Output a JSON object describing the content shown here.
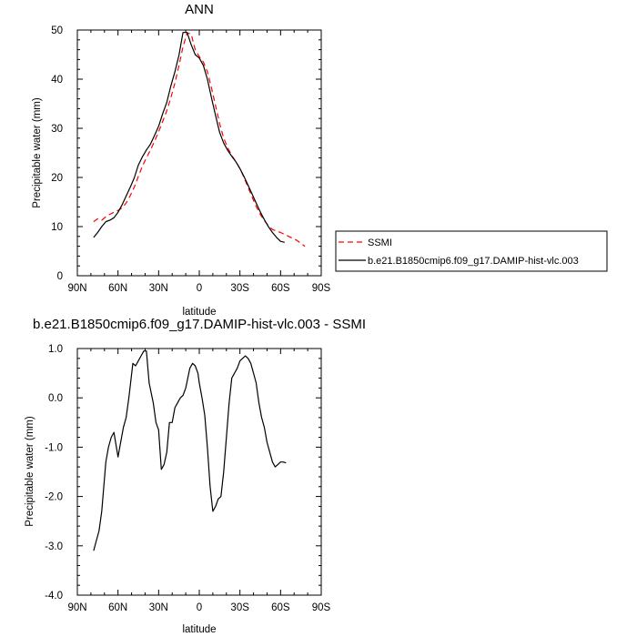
{
  "legend": {
    "entries": [
      {
        "label": "SSMI",
        "color": "#ff0000",
        "dash": "dashed"
      },
      {
        "label": "b.e21.B1850cmip6.f09_g17.DAMIP-hist-vlc.003",
        "color": "#000000",
        "dash": "solid"
      }
    ]
  },
  "chart_data": [
    {
      "type": "line",
      "title": "ANN",
      "xlabel": "latitude",
      "ylabel": "Precipitable water (mm)",
      "xlim": [
        90,
        -90
      ],
      "ylim": [
        0,
        50
      ],
      "x_ticks": [
        90,
        60,
        30,
        0,
        -30,
        -60,
        -90
      ],
      "x_tick_labels": [
        "90N",
        "60N",
        "30N",
        "0",
        "30S",
        "60S",
        "90S"
      ],
      "y_ticks": [
        0,
        10,
        20,
        30,
        40,
        50
      ],
      "y_tick_labels": [
        "0",
        "10",
        "20",
        "30",
        "40",
        "50"
      ],
      "grid": false,
      "legend_position": "right",
      "series": [
        {
          "name": "SSMI",
          "color": "#ff0000",
          "dash": "dashed",
          "x": [
            78,
            75,
            72,
            69,
            66,
            63,
            60,
            57,
            54,
            51,
            48,
            45,
            42,
            39,
            36,
            33,
            30,
            27,
            24,
            21,
            18,
            15,
            12,
            9,
            6,
            3,
            0,
            -3,
            -6,
            -9,
            -12,
            -15,
            -18,
            -21,
            -24,
            -27,
            -30,
            -33,
            -36,
            -39,
            -42,
            -45,
            -48,
            -51,
            -54,
            -57,
            -60,
            -63,
            -66,
            -69,
            -72,
            -75,
            -78
          ],
          "y": [
            11.0,
            11.6,
            11.3,
            12.0,
            12.5,
            12.9,
            13.3,
            13.8,
            14.8,
            16.3,
            18.0,
            20.2,
            22.3,
            24.0,
            25.6,
            27.4,
            29.3,
            31.4,
            33.6,
            36.2,
            39.2,
            42.8,
            46.6,
            49.4,
            49.2,
            46.0,
            44.6,
            43.5,
            41.5,
            38.2,
            34.6,
            31.0,
            28.0,
            26.0,
            24.5,
            23.2,
            21.8,
            20.0,
            18.0,
            16.0,
            14.1,
            12.5,
            11.2,
            10.2,
            9.4,
            9.1,
            8.8,
            8.4,
            8.0,
            7.6,
            7.2,
            6.6,
            6.0
          ]
        },
        {
          "name": "b.e21.B1850cmip6.f09_g17.DAMIP-hist-vlc.003",
          "color": "#000000",
          "dash": "solid",
          "x": [
            78,
            75,
            72,
            69,
            66,
            63,
            60,
            57,
            54,
            51,
            48,
            45,
            42,
            39,
            36,
            33,
            30,
            27,
            24,
            21,
            18,
            15,
            12,
            9,
            6,
            3,
            0,
            -3,
            -6,
            -9,
            -12,
            -15,
            -18,
            -21,
            -24,
            -27,
            -30,
            -33,
            -36,
            -39,
            -42,
            -45,
            -48,
            -51,
            -54,
            -57,
            -60,
            -63
          ],
          "y": [
            7.8,
            8.8,
            10.0,
            11.0,
            11.3,
            11.8,
            12.9,
            14.4,
            16.2,
            18.0,
            19.9,
            22.5,
            24.2,
            25.6,
            26.8,
            28.6,
            30.4,
            33.0,
            35.3,
            38.6,
            41.5,
            44.9,
            49.5,
            49.5,
            47.0,
            45.0,
            44.3,
            42.8,
            40.0,
            36.2,
            32.6,
            29.2,
            27.0,
            25.5,
            24.3,
            23.2,
            21.8,
            20.2,
            18.4,
            16.6,
            14.8,
            13.0,
            11.4,
            10.0,
            8.8,
            7.8,
            7.0,
            6.8
          ]
        }
      ]
    },
    {
      "type": "line",
      "title": "b.e21.B1850cmip6.f09_g17.DAMIP-hist-vlc.003 - SSMI",
      "xlabel": "latitude",
      "ylabel": "Precipitable water (mm)",
      "xlim": [
        90,
        -90
      ],
      "ylim": [
        -4,
        1
      ],
      "x_ticks": [
        90,
        60,
        30,
        0,
        -30,
        -60,
        -90
      ],
      "x_tick_labels": [
        "90N",
        "60N",
        "30N",
        "0",
        "30S",
        "60S",
        "90S"
      ],
      "y_ticks": [
        -4,
        -3,
        -2,
        -1,
        0,
        1
      ],
      "y_tick_labels": [
        "-4.0",
        "-3.0",
        "-2.0",
        "-1.0",
        "0.0",
        "1.0"
      ],
      "grid": false,
      "series": [
        {
          "color": "#000000",
          "dash": "solid",
          "x": [
            78,
            76,
            74,
            72,
            69,
            67,
            65,
            63,
            60,
            58,
            56,
            54,
            52,
            49,
            47,
            45,
            43,
            41,
            39,
            37,
            34,
            32,
            30,
            28,
            26,
            24,
            22,
            20,
            18,
            16,
            14,
            12,
            10,
            7,
            5,
            3,
            1,
            0,
            -2,
            -4,
            -6,
            -8,
            -10,
            -12,
            -14,
            -16,
            -18,
            -20,
            -22,
            -24,
            -26,
            -28,
            -30,
            -32,
            -34,
            -36,
            -38,
            -40,
            -42,
            -44,
            -46,
            -48,
            -50,
            -52,
            -54,
            -56,
            -58,
            -60,
            -62,
            -64
          ],
          "y": [
            -3.1,
            -2.9,
            -2.7,
            -2.3,
            -1.3,
            -1.0,
            -0.8,
            -0.7,
            -1.2,
            -0.9,
            -0.6,
            -0.4,
            0.0,
            0.7,
            0.65,
            0.75,
            0.85,
            0.95,
            0.95,
            0.3,
            -0.1,
            -0.5,
            -0.65,
            -1.45,
            -1.35,
            -1.1,
            -0.5,
            -0.5,
            -0.2,
            -0.1,
            0.0,
            0.05,
            0.2,
            0.6,
            0.7,
            0.65,
            0.5,
            0.3,
            0.0,
            -0.35,
            -1.0,
            -1.8,
            -2.3,
            -2.2,
            -2.05,
            -2.0,
            -1.5,
            -0.8,
            -0.1,
            0.4,
            0.5,
            0.6,
            0.75,
            0.8,
            0.85,
            0.8,
            0.7,
            0.5,
            0.3,
            -0.1,
            -0.4,
            -0.6,
            -0.9,
            -1.1,
            -1.3,
            -1.4,
            -1.35,
            -1.3,
            -1.3,
            -1.32
          ]
        }
      ]
    }
  ]
}
